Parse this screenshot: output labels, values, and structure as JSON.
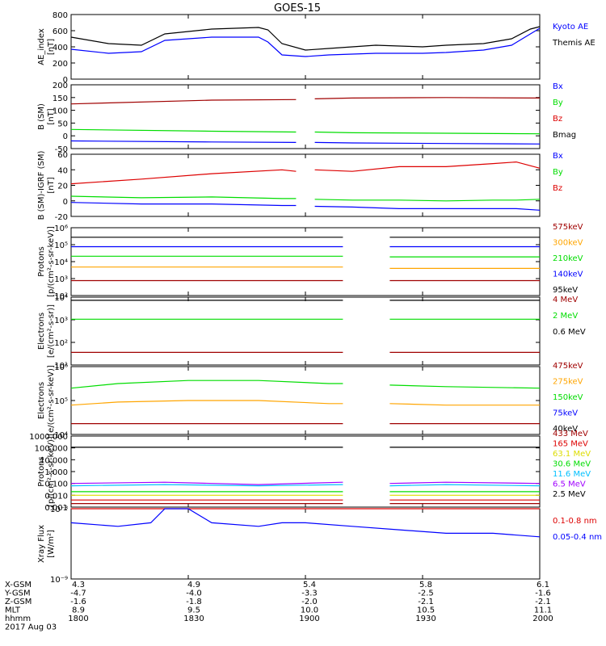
{
  "title": "GOES-15",
  "colors": {
    "black": "#000000",
    "blue": "#0000ff",
    "green": "#00dd00",
    "red": "#dd0000",
    "darkred": "#a00000",
    "orange": "#ffa500",
    "cyan": "#00c0ff",
    "yellow": "#dddd00",
    "purple": "#a000ff"
  },
  "orbit_table": {
    "rows": [
      {
        "label": "X-GSM",
        "values": [
          "4.3",
          "4.9",
          "5.4",
          "5.8",
          "6.1"
        ]
      },
      {
        "label": "Y-GSM",
        "values": [
          "-4.7",
          "-4.0",
          "-3.3",
          "-2.5",
          "-1.6"
        ]
      },
      {
        "label": "Z-GSM",
        "values": [
          "-1.6",
          "-1.8",
          "-2.0",
          "-2.1",
          "-2.1"
        ]
      },
      {
        "label": "MLT",
        "values": [
          "8.9",
          "9.5",
          "10.0",
          "10.5",
          "11.1"
        ]
      },
      {
        "label": "hhmm",
        "values": [
          "1800",
          "1830",
          "1900",
          "1930",
          "2000"
        ]
      }
    ],
    "date": "2017 Aug 03"
  },
  "chart_data": [
    {
      "id": "ae",
      "type": "line",
      "ylabel": "AE_index",
      "units": "[nT]",
      "scale": "linear",
      "ylim": [
        0,
        800
      ],
      "ticks": [
        "0",
        "200",
        "400",
        "600",
        "800"
      ],
      "legend": [
        {
          "text": "Kyoto AE",
          "color": "blue"
        },
        {
          "text": "Themis AE",
          "color": "black"
        }
      ],
      "x": [
        0,
        0.08,
        0.15,
        0.2,
        0.3,
        0.4,
        0.42,
        0.45,
        0.5,
        0.55,
        0.65,
        0.75,
        0.8,
        0.88,
        0.94,
        0.98,
        1.0
      ],
      "series": [
        {
          "color": "black",
          "values": [
            520,
            440,
            420,
            560,
            620,
            640,
            610,
            440,
            360,
            380,
            420,
            400,
            420,
            440,
            500,
            620,
            650
          ]
        },
        {
          "color": "blue",
          "values": [
            370,
            320,
            340,
            480,
            520,
            520,
            460,
            300,
            280,
            300,
            320,
            320,
            330,
            360,
            420,
            560,
            630
          ]
        }
      ]
    },
    {
      "id": "bsm",
      "type": "line",
      "ylabel": "B (SM)",
      "units": "[nT]",
      "scale": "linear",
      "ylim": [
        -50,
        200
      ],
      "ticks": [
        "-50",
        "0",
        "50",
        "100",
        "150",
        "200"
      ],
      "legend": [
        {
          "text": "Bx",
          "color": "blue"
        },
        {
          "text": "By",
          "color": "green"
        },
        {
          "text": "Bz",
          "color": "red"
        },
        {
          "text": "Bmag",
          "color": "black"
        }
      ],
      "x": [
        0,
        0.3,
        0.48,
        0.52,
        0.6,
        0.8,
        1.0
      ],
      "gap": [
        0.48,
        0.52
      ],
      "series": [
        {
          "color": "darkred",
          "values": [
            125,
            140,
            142,
            145,
            148,
            150,
            148
          ]
        },
        {
          "color": "green",
          "values": [
            25,
            18,
            15,
            15,
            12,
            10,
            8
          ]
        },
        {
          "color": "blue",
          "values": [
            -20,
            -24,
            -26,
            -26,
            -28,
            -30,
            -32
          ]
        }
      ]
    },
    {
      "id": "bigrf",
      "type": "line",
      "ylabel": "B (SM)-IGRF (SM)",
      "units": "[nT]",
      "scale": "linear",
      "ylim": [
        -20,
        60
      ],
      "ticks": [
        "-20",
        "0",
        "20",
        "40",
        "60"
      ],
      "legend": [
        {
          "text": "Bx",
          "color": "blue"
        },
        {
          "text": "By",
          "color": "green"
        },
        {
          "text": "Bz",
          "color": "red"
        }
      ],
      "x": [
        0,
        0.15,
        0.3,
        0.45,
        0.48,
        0.52,
        0.6,
        0.7,
        0.8,
        0.9,
        0.95,
        1.0
      ],
      "gap": [
        0.48,
        0.52
      ],
      "series": [
        {
          "color": "red",
          "values": [
            22,
            28,
            35,
            40,
            38,
            40,
            38,
            44,
            44,
            48,
            50,
            42
          ]
        },
        {
          "color": "green",
          "values": [
            6,
            4,
            5,
            3,
            3,
            2,
            1,
            1,
            0,
            1,
            1,
            2
          ]
        },
        {
          "color": "blue",
          "values": [
            -2,
            -4,
            -4,
            -6,
            -6,
            -7,
            -8,
            -10,
            -10,
            -10,
            -10,
            -12
          ]
        }
      ]
    },
    {
      "id": "protons",
      "type": "line",
      "ylabel": "Protons",
      "units": "[p/(cm²-s-sr-keV)]",
      "scale": "log",
      "ylim": [
        1,
        6
      ],
      "ticks": [
        "10²",
        "10³",
        "10⁴",
        "10⁵",
        "10⁶"
      ],
      "legend": [
        {
          "text": "575keV",
          "color": "darkred"
        },
        {
          "text": "300keV",
          "color": "orange"
        },
        {
          "text": "210keV",
          "color": "green"
        },
        {
          "text": "140keV",
          "color": "blue"
        },
        {
          "text": "95keV",
          "color": "black"
        }
      ],
      "x": [
        0,
        0.2,
        0.4,
        0.58,
        0.68,
        0.8,
        1.0
      ],
      "gap": [
        0.58,
        0.68
      ],
      "series": [
        {
          "color": "black",
          "values": [
            5.3,
            5.3,
            5.3,
            5.3,
            5.3,
            5.3,
            5.3
          ]
        },
        {
          "color": "blue",
          "values": [
            4.6,
            4.6,
            4.6,
            4.6,
            4.6,
            4.6,
            4.6
          ]
        },
        {
          "color": "green",
          "values": [
            3.9,
            3.9,
            3.9,
            3.9,
            3.85,
            3.85,
            3.85
          ]
        },
        {
          "color": "orange",
          "values": [
            3.1,
            3.1,
            3.1,
            3.1,
            3.0,
            3.0,
            3.0
          ]
        },
        {
          "color": "darkred",
          "values": [
            2.1,
            2.1,
            2.1,
            2.1,
            2.1,
            2.1,
            2.1
          ]
        }
      ]
    },
    {
      "id": "electrons1",
      "type": "line",
      "ylabel": "Electrons",
      "units": "[e/(cm²-s-sr)]",
      "scale": "log",
      "ylim": [
        0.5,
        4.8
      ],
      "ticks": [
        "10¹",
        "10²",
        "10³",
        "10⁴"
      ],
      "legend": [
        {
          "text": "4 MeV",
          "color": "darkred"
        },
        {
          "text": "2 MeV",
          "color": "green"
        },
        {
          "text": "0.6 MeV",
          "color": "black"
        }
      ],
      "x": [
        0,
        0.2,
        0.4,
        0.58,
        0.68,
        0.8,
        1.0
      ],
      "gap": [
        0.58,
        0.68
      ],
      "series": [
        {
          "color": "black",
          "values": [
            4.6,
            4.6,
            4.6,
            4.6,
            4.6,
            4.6,
            4.6
          ]
        },
        {
          "color": "green",
          "values": [
            3.4,
            3.4,
            3.4,
            3.4,
            3.4,
            3.4,
            3.4
          ]
        },
        {
          "color": "darkred",
          "values": [
            1.3,
            1.3,
            1.3,
            1.3,
            1.3,
            1.3,
            1.3
          ]
        }
      ]
    },
    {
      "id": "electrons2",
      "type": "line",
      "ylabel": "Electrons",
      "units": "[e/(cm²-s-sr-keV)]",
      "scale": "log",
      "ylim": [
        3.8,
        6
      ],
      "ticks": [
        "10⁴",
        "10⁵",
        "10⁶"
      ],
      "legend": [
        {
          "text": "475keV",
          "color": "darkred"
        },
        {
          "text": "275keV",
          "color": "orange"
        },
        {
          "text": "150keV",
          "color": "green"
        },
        {
          "text": "75keV",
          "color": "blue"
        },
        {
          "text": "40keV",
          "color": "black"
        }
      ],
      "x": [
        0,
        0.1,
        0.25,
        0.4,
        0.55,
        0.58,
        0.68,
        0.8,
        1.0
      ],
      "gap": [
        0.58,
        0.68
      ],
      "series": [
        {
          "color": "green",
          "values": [
            5.3,
            5.45,
            5.55,
            5.55,
            5.45,
            5.45,
            5.4,
            5.35,
            5.3
          ]
        },
        {
          "color": "orange",
          "values": [
            4.75,
            4.85,
            4.9,
            4.9,
            4.8,
            4.8,
            4.8,
            4.75,
            4.75
          ]
        },
        {
          "color": "darkred",
          "values": [
            4.15,
            4.15,
            4.15,
            4.15,
            4.15,
            4.15,
            4.15,
            4.15,
            4.15
          ]
        }
      ]
    },
    {
      "id": "hiprotons",
      "type": "line",
      "ylabel": "Protons",
      "units": "[p/(cm²-s-sr-keV)]",
      "scale": "log",
      "ylim": [
        -3,
        3
      ],
      "ticks": [
        "0.001",
        "0.010",
        "0.100",
        "1.000",
        "10.000",
        "100.000",
        "1000.000"
      ],
      "legend": [
        {
          "text": "433 MeV",
          "color": "darkred"
        },
        {
          "text": "165 MeV",
          "color": "red"
        },
        {
          "text": "63.1 MeV",
          "color": "yellow"
        },
        {
          "text": "30.6 MeV",
          "color": "green"
        },
        {
          "text": "11.6 MeV",
          "color": "cyan"
        },
        {
          "text": "6.5 MeV",
          "color": "purple"
        },
        {
          "text": "2.5 MeV",
          "color": "black"
        }
      ],
      "x": [
        0,
        0.2,
        0.4,
        0.58,
        0.68,
        0.8,
        1.0
      ],
      "gap": [
        0.58,
        0.68
      ],
      "series": [
        {
          "color": "black",
          "values": [
            2.05,
            2.05,
            2.05,
            2.05,
            2.05,
            2.05,
            2.05
          ]
        },
        {
          "color": "purple",
          "values": [
            -1.0,
            -0.9,
            -1.1,
            -0.9,
            -1.0,
            -0.9,
            -1.0
          ]
        },
        {
          "color": "cyan",
          "values": [
            -1.2,
            -1.1,
            -1.2,
            -1.1,
            -1.2,
            -1.1,
            -1.2
          ]
        },
        {
          "color": "green",
          "values": [
            -1.7,
            -1.7,
            -1.7,
            -1.7,
            -1.7,
            -1.7,
            -1.7
          ]
        },
        {
          "color": "yellow",
          "values": [
            -2.0,
            -2.0,
            -2.0,
            -2.0,
            -2.0,
            -2.0,
            -2.0
          ]
        },
        {
          "color": "red",
          "values": [
            -2.4,
            -2.4,
            -2.4,
            -2.4,
            -2.4,
            -2.4,
            -2.4
          ]
        },
        {
          "color": "darkred",
          "values": [
            -2.7,
            -2.7,
            -2.7,
            -2.7,
            -2.7,
            -2.7,
            -2.7
          ]
        }
      ]
    },
    {
      "id": "xray",
      "type": "line",
      "ylabel": "Xray Flux",
      "units": "[W/m²]",
      "scale": "log",
      "ylim": [
        -9,
        -8
      ],
      "ticks": [
        "10⁻⁹",
        "10⁻⁸"
      ],
      "legend": [
        {
          "text": "0.1-0.8 nm",
          "color": "red"
        },
        {
          "text": "0.05-0.4 nm",
          "color": "blue"
        }
      ],
      "x": [
        0,
        0.1,
        0.17,
        0.2,
        0.25,
        0.3,
        0.4,
        0.45,
        0.5,
        0.6,
        0.7,
        0.8,
        0.9,
        1.0
      ],
      "series": [
        {
          "color": "red",
          "values": [
            -6.9,
            -6.9,
            -6.85,
            -6.55,
            -6.6,
            -6.85,
            -7.0,
            -6.8,
            -6.78,
            -6.8,
            -6.85,
            -6.9,
            -6.95,
            -7.0
          ]
        },
        {
          "color": "blue",
          "values": [
            -8.2,
            -8.25,
            -8.2,
            -7.85,
            -8.0,
            -8.2,
            -8.25,
            -8.2,
            -8.2,
            -8.25,
            -8.3,
            -8.35,
            -8.35,
            -8.4
          ]
        }
      ]
    }
  ]
}
